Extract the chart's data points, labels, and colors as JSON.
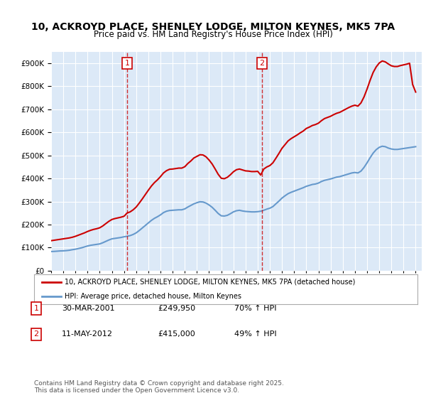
{
  "title": "10, ACKROYD PLACE, SHENLEY LODGE, MILTON KEYNES, MK5 7PA",
  "subtitle": "Price paid vs. HM Land Registry's House Price Index (HPI)",
  "title_fontsize": 10.5,
  "subtitle_fontsize": 9.5,
  "ylim": [
    0,
    950000
  ],
  "yticks": [
    0,
    100000,
    200000,
    300000,
    400000,
    500000,
    600000,
    700000,
    800000,
    900000
  ],
  "ytick_labels": [
    "£0",
    "£100K",
    "£200K",
    "£300K",
    "£400K",
    "£500K",
    "£600K",
    "£700K",
    "£800K",
    "£900K"
  ],
  "xlim_start": 1995.0,
  "xlim_end": 2025.5,
  "background_color": "#dce9f7",
  "plot_bg_color": "#dce9f7",
  "grid_color": "#ffffff",
  "red_line_color": "#cc0000",
  "blue_line_color": "#6699cc",
  "sale1_x": 2001.25,
  "sale1_y": 249950,
  "sale2_x": 2012.36,
  "sale2_y": 415000,
  "legend_line1": "10, ACKROYD PLACE, SHENLEY LODGE, MILTON KEYNES, MK5 7PA (detached house)",
  "legend_line2": "HPI: Average price, detached house, Milton Keynes",
  "table_rows": [
    {
      "num": "1",
      "date": "30-MAR-2001",
      "price": "£249,950",
      "change": "70% ↑ HPI"
    },
    {
      "num": "2",
      "date": "11-MAY-2012",
      "price": "£415,000",
      "change": "49% ↑ HPI"
    }
  ],
  "footer": "Contains HM Land Registry data © Crown copyright and database right 2025.\nThis data is licensed under the Open Government Licence v3.0.",
  "hpi_data_x": [
    1995.0,
    1995.25,
    1995.5,
    1995.75,
    1996.0,
    1996.25,
    1996.5,
    1996.75,
    1997.0,
    1997.25,
    1997.5,
    1997.75,
    1998.0,
    1998.25,
    1998.5,
    1998.75,
    1999.0,
    1999.25,
    1999.5,
    1999.75,
    2000.0,
    2000.25,
    2000.5,
    2000.75,
    2001.0,
    2001.25,
    2001.5,
    2001.75,
    2002.0,
    2002.25,
    2002.5,
    2002.75,
    2003.0,
    2003.25,
    2003.5,
    2003.75,
    2004.0,
    2004.25,
    2004.5,
    2004.75,
    2005.0,
    2005.25,
    2005.5,
    2005.75,
    2006.0,
    2006.25,
    2006.5,
    2006.75,
    2007.0,
    2007.25,
    2007.5,
    2007.75,
    2008.0,
    2008.25,
    2008.5,
    2008.75,
    2009.0,
    2009.25,
    2009.5,
    2009.75,
    2010.0,
    2010.25,
    2010.5,
    2010.75,
    2011.0,
    2011.25,
    2011.5,
    2011.75,
    2012.0,
    2012.25,
    2012.5,
    2012.75,
    2013.0,
    2013.25,
    2013.5,
    2013.75,
    2014.0,
    2014.25,
    2014.5,
    2014.75,
    2015.0,
    2015.25,
    2015.5,
    2015.75,
    2016.0,
    2016.25,
    2016.5,
    2016.75,
    2017.0,
    2017.25,
    2017.5,
    2017.75,
    2018.0,
    2018.25,
    2018.5,
    2018.75,
    2019.0,
    2019.25,
    2019.5,
    2019.75,
    2020.0,
    2020.25,
    2020.5,
    2020.75,
    2021.0,
    2021.25,
    2021.5,
    2021.75,
    2022.0,
    2022.25,
    2022.5,
    2022.75,
    2023.0,
    2023.25,
    2023.5,
    2023.75,
    2024.0,
    2024.25,
    2024.5,
    2024.75,
    2025.0
  ],
  "hpi_data_y": [
    83000,
    83500,
    84500,
    85500,
    86000,
    87000,
    88500,
    91000,
    93000,
    96000,
    99000,
    103000,
    107000,
    110000,
    112000,
    114000,
    116000,
    121000,
    127000,
    133000,
    138000,
    140000,
    142000,
    144000,
    147000,
    149000,
    152000,
    157000,
    164000,
    174000,
    185000,
    196000,
    207000,
    218000,
    227000,
    234000,
    242000,
    252000,
    258000,
    261000,
    262000,
    263000,
    264000,
    264000,
    268000,
    276000,
    283000,
    290000,
    295000,
    299000,
    298000,
    293000,
    285000,
    275000,
    262000,
    248000,
    238000,
    237000,
    240000,
    247000,
    255000,
    260000,
    262000,
    259000,
    257000,
    256000,
    255000,
    255000,
    256000,
    258000,
    262000,
    267000,
    271000,
    278000,
    290000,
    302000,
    315000,
    325000,
    334000,
    340000,
    345000,
    350000,
    355000,
    360000,
    366000,
    370000,
    374000,
    376000,
    380000,
    387000,
    392000,
    395000,
    398000,
    402000,
    406000,
    408000,
    412000,
    416000,
    420000,
    424000,
    426000,
    424000,
    432000,
    448000,
    468000,
    490000,
    510000,
    525000,
    535000,
    540000,
    538000,
    532000,
    528000,
    526000,
    526000,
    528000,
    530000,
    532000,
    534000,
    536000,
    538000
  ],
  "red_data_x": [
    1995.0,
    1995.25,
    1995.5,
    1995.75,
    1996.0,
    1996.25,
    1996.5,
    1996.75,
    1997.0,
    1997.25,
    1997.5,
    1997.75,
    1998.0,
    1998.25,
    1998.5,
    1998.75,
    1999.0,
    1999.25,
    1999.5,
    1999.75,
    2000.0,
    2000.25,
    2000.5,
    2000.75,
    2001.0,
    2001.25,
    2001.5,
    2001.75,
    2002.0,
    2002.25,
    2002.5,
    2002.75,
    2003.0,
    2003.25,
    2003.5,
    2003.75,
    2004.0,
    2004.25,
    2004.5,
    2004.75,
    2005.0,
    2005.25,
    2005.5,
    2005.75,
    2006.0,
    2006.25,
    2006.5,
    2006.75,
    2007.0,
    2007.25,
    2007.5,
    2007.75,
    2008.0,
    2008.25,
    2008.5,
    2008.75,
    2009.0,
    2009.25,
    2009.5,
    2009.75,
    2010.0,
    2010.25,
    2010.5,
    2010.75,
    2011.0,
    2011.25,
    2011.5,
    2011.75,
    2012.0,
    2012.25,
    2012.5,
    2012.75,
    2013.0,
    2013.25,
    2013.5,
    2013.75,
    2014.0,
    2014.25,
    2014.5,
    2014.75,
    2015.0,
    2015.25,
    2015.5,
    2015.75,
    2016.0,
    2016.25,
    2016.5,
    2016.75,
    2017.0,
    2017.25,
    2017.5,
    2017.75,
    2018.0,
    2018.25,
    2018.5,
    2018.75,
    2019.0,
    2019.25,
    2019.5,
    2019.75,
    2020.0,
    2020.25,
    2020.5,
    2020.75,
    2021.0,
    2021.25,
    2021.5,
    2021.75,
    2022.0,
    2022.25,
    2022.5,
    2022.75,
    2023.0,
    2023.25,
    2023.5,
    2023.75,
    2024.0,
    2024.25,
    2024.5,
    2024.75,
    2025.0
  ],
  "red_data_y": [
    130000,
    132000,
    134000,
    136000,
    138000,
    140000,
    142000,
    145000,
    149000,
    154000,
    159000,
    164000,
    170000,
    175000,
    179000,
    182000,
    186000,
    194000,
    204000,
    214000,
    222000,
    226000,
    229000,
    232000,
    236000,
    249950,
    255000,
    264000,
    276000,
    293000,
    311000,
    330000,
    349000,
    367000,
    382000,
    394000,
    408000,
    424000,
    434000,
    440000,
    441000,
    443000,
    445000,
    445000,
    451000,
    465000,
    476000,
    489000,
    496000,
    503000,
    502000,
    494000,
    480000,
    463000,
    441000,
    418000,
    401000,
    399000,
    405000,
    416000,
    429000,
    438000,
    441000,
    437000,
    433000,
    432000,
    430000,
    430000,
    431000,
    415000,
    441000,
    450000,
    456000,
    468000,
    488000,
    509000,
    531000,
    547000,
    563000,
    573000,
    581000,
    589000,
    598000,
    606000,
    617000,
    623000,
    630000,
    634000,
    640000,
    651000,
    660000,
    665000,
    670000,
    677000,
    683000,
    687000,
    694000,
    701000,
    708000,
    714000,
    718000,
    714000,
    728000,
    754000,
    788000,
    826000,
    860000,
    884000,
    901000,
    910000,
    906000,
    897000,
    889000,
    886000,
    886000,
    890000,
    893000,
    896000,
    900000,
    808000,
    775000
  ]
}
